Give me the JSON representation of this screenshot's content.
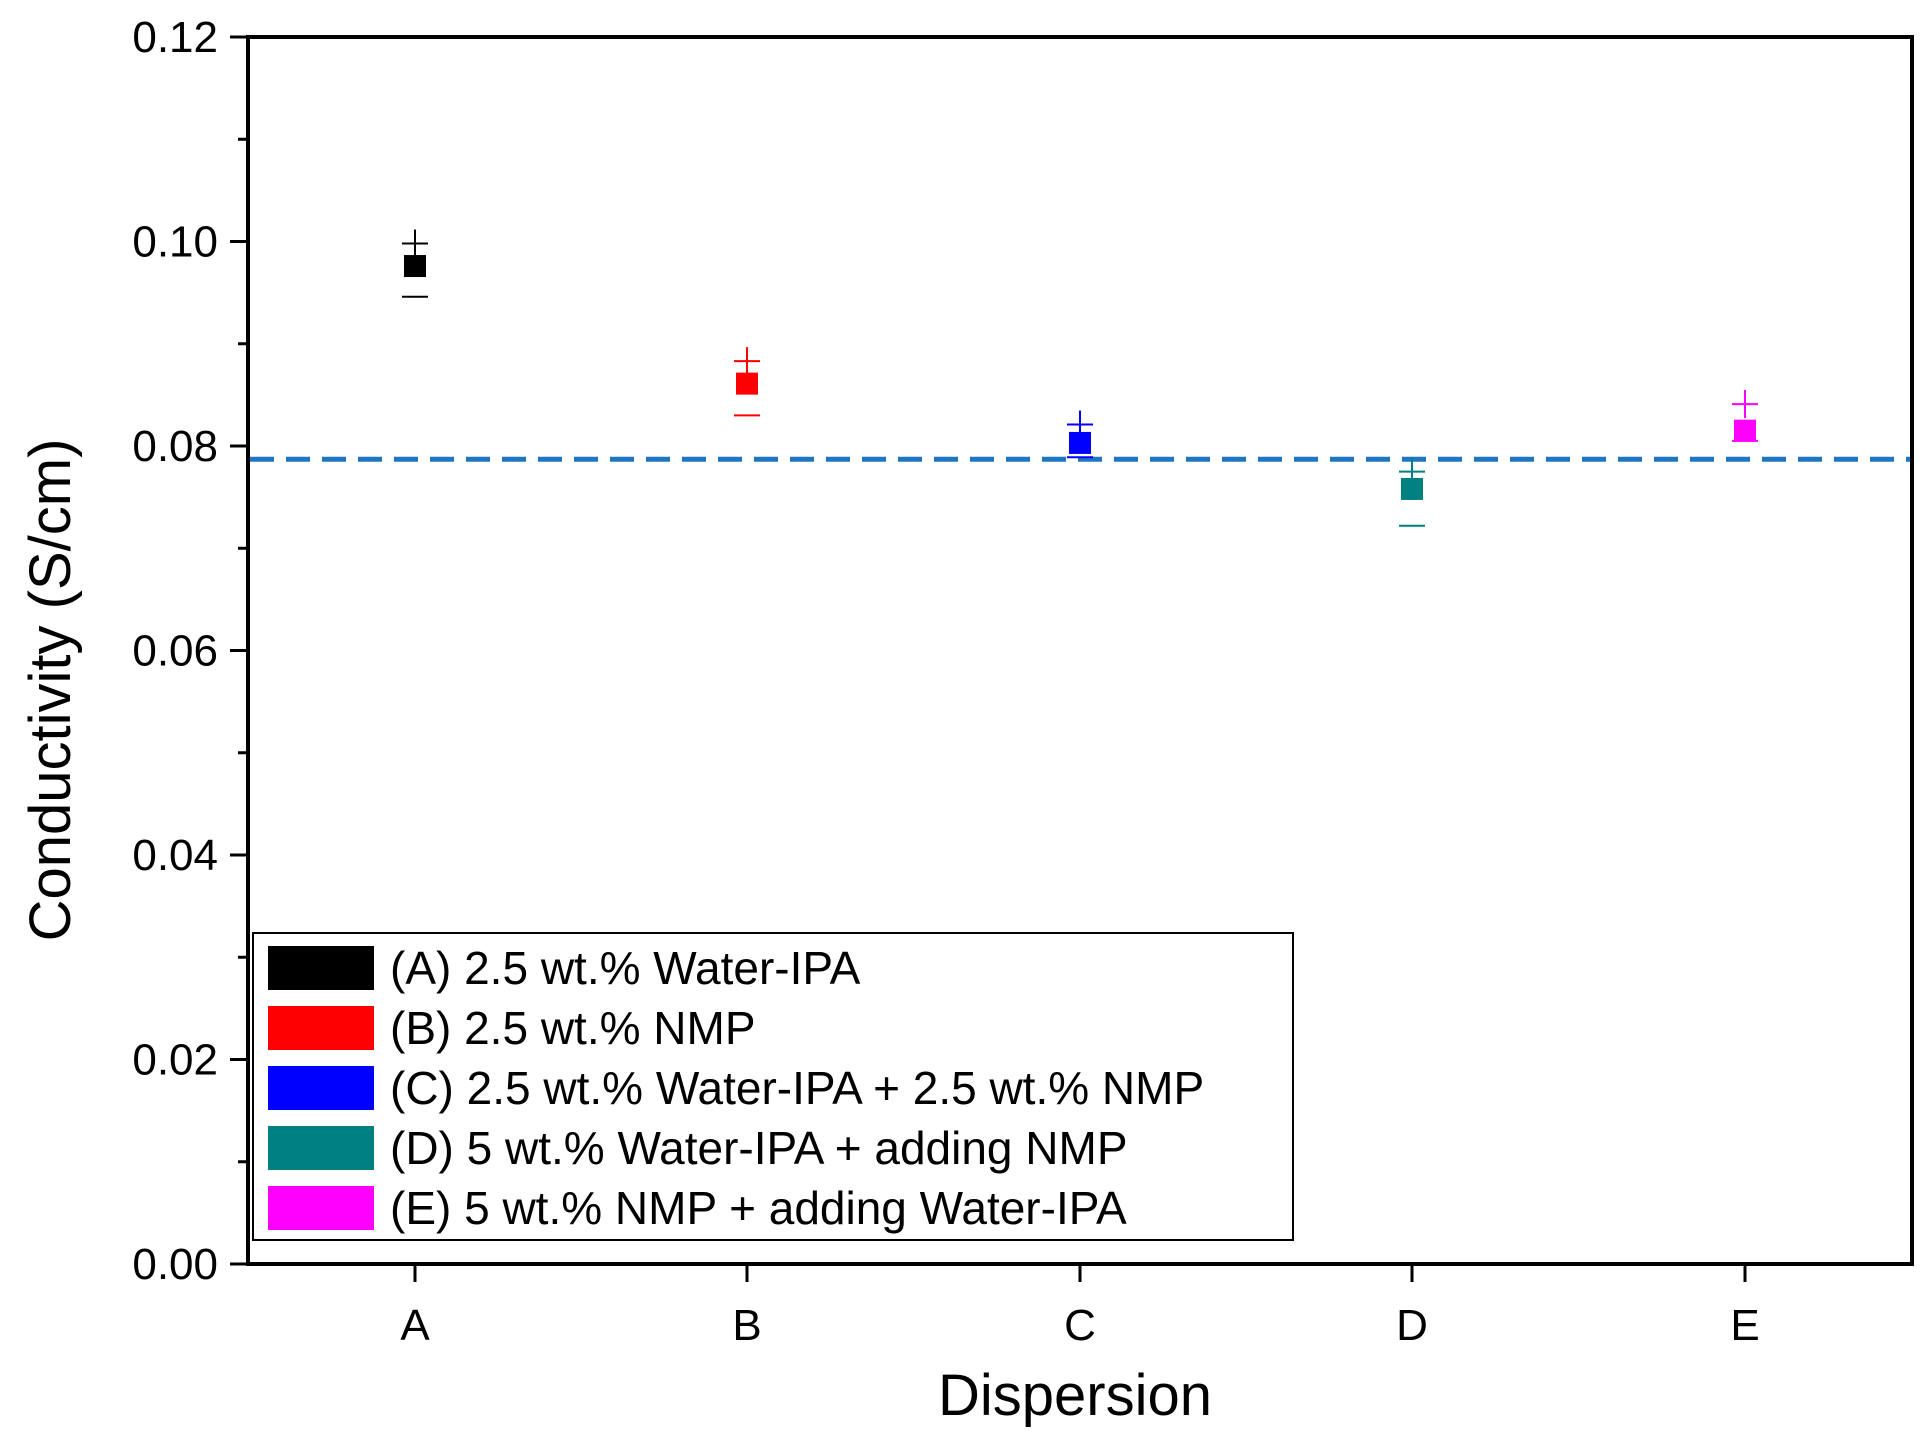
{
  "chart_data": {
    "type": "scatter",
    "title": "",
    "xlabel": "Dispersion",
    "ylabel": "Conductivity (S/cm)",
    "categories": [
      "A",
      "B",
      "C",
      "D",
      "E"
    ],
    "ylim": [
      0.0,
      0.12
    ],
    "y_ticks": [
      "0.00",
      "0.02",
      "0.04",
      "0.06",
      "0.08",
      "0.10",
      "0.12"
    ],
    "reference_line": {
      "y": 0.0787,
      "color": "#1f77c4",
      "style": "dashed"
    },
    "series": [
      {
        "name": "(A)  2.5 wt.% Water-IPA",
        "category": "A",
        "value": 0.0976,
        "upper": 0.0998,
        "lower": 0.0946,
        "color": "#000000"
      },
      {
        "name": "(B)  2.5 wt.% NMP",
        "category": "B",
        "value": 0.0861,
        "upper": 0.0883,
        "lower": 0.083,
        "color": "#ff0000"
      },
      {
        "name": "(C)  2.5 wt.% Water-IPA + 2.5 wt.% NMP",
        "category": "C",
        "value": 0.0803,
        "upper": 0.0821,
        "lower": 0.0789,
        "color": "#0000ff"
      },
      {
        "name": "(D)  5 wt.% Water-IPA + adding NMP",
        "category": "D",
        "value": 0.0758,
        "upper": 0.0775,
        "lower": 0.0722,
        "color": "#008080"
      },
      {
        "name": "(E)  5 wt.% NMP + adding Water-IPA",
        "category": "E",
        "value": 0.0815,
        "upper": 0.0841,
        "lower": 0.0805,
        "color": "#ff00ff"
      }
    ],
    "legend_position": "bottom-left",
    "grid": false
  }
}
